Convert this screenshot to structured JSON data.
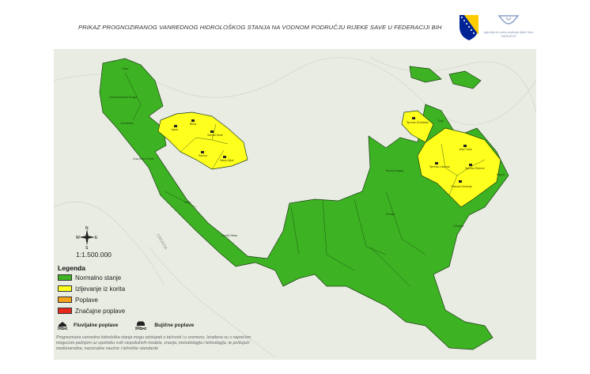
{
  "header": {
    "title": "PRIKAZ PROGNOZIRANOG VANREDNOG HIDROLOŠKOG STANJA NA VODNOM PODRUČJU RIJEKE SAVE U FEDERACIJI BIH",
    "agency_logo_text": "Agencija za vodno područje rijeke Save SARAJEVO"
  },
  "map": {
    "country_label": "CROATIA",
    "scale": "1:1.500.000",
    "compass": {
      "n": "N",
      "s": "S",
      "e": "E",
      "w": "W"
    },
    "labels_yellow": [
      "Japra",
      "Bliha",
      "Sanski Most",
      "Sanica",
      "Sana-Ključ",
      "Spreča-Gradačac",
      "Spreča-Lukavac",
      "Jala-Tuzla",
      "Spreča-Živinice",
      "Oskova-Gostelja"
    ],
    "labels_green": [
      "Glina",
      "Una-Bosanska Dvoga",
      "Una-Bihać",
      "Una-Sutra Vrbas",
      "Unac",
      "Gornji Vrbas",
      "Tinja",
      "Sapna",
      "Bosna-Maglaj",
      "Krivaja",
      "Drinjača"
    ]
  },
  "legend": {
    "title": "Legenda",
    "items": [
      {
        "label": "Normalno stanje",
        "color": "#3db323"
      },
      {
        "label": "Izljevanje iz korita",
        "color": "#ffff1e"
      },
      {
        "label": "Poplave",
        "color": "#f5a31a"
      },
      {
        "label": "Značajne poplave",
        "color": "#e8281c"
      }
    ],
    "fluvial": "Fluvijalne poplave",
    "torrential": "Bujične poplave"
  },
  "disclaimer": "Prognozirana vanredna hidrološka stanja mogu odstupati u tačnosti i u vremenu. Izrađena su s najvećom mogućom pažnjom uz upotrebu svih raspoloživih modela, znanja, metodologija i tehnologija, te poštujući međunarodne, nacionalne naučne i tehničke standarde",
  "colors": {
    "normal": "#3db323",
    "overflow": "#ffff1e",
    "border": "#1b3d12",
    "background": "#e9ece3"
  }
}
